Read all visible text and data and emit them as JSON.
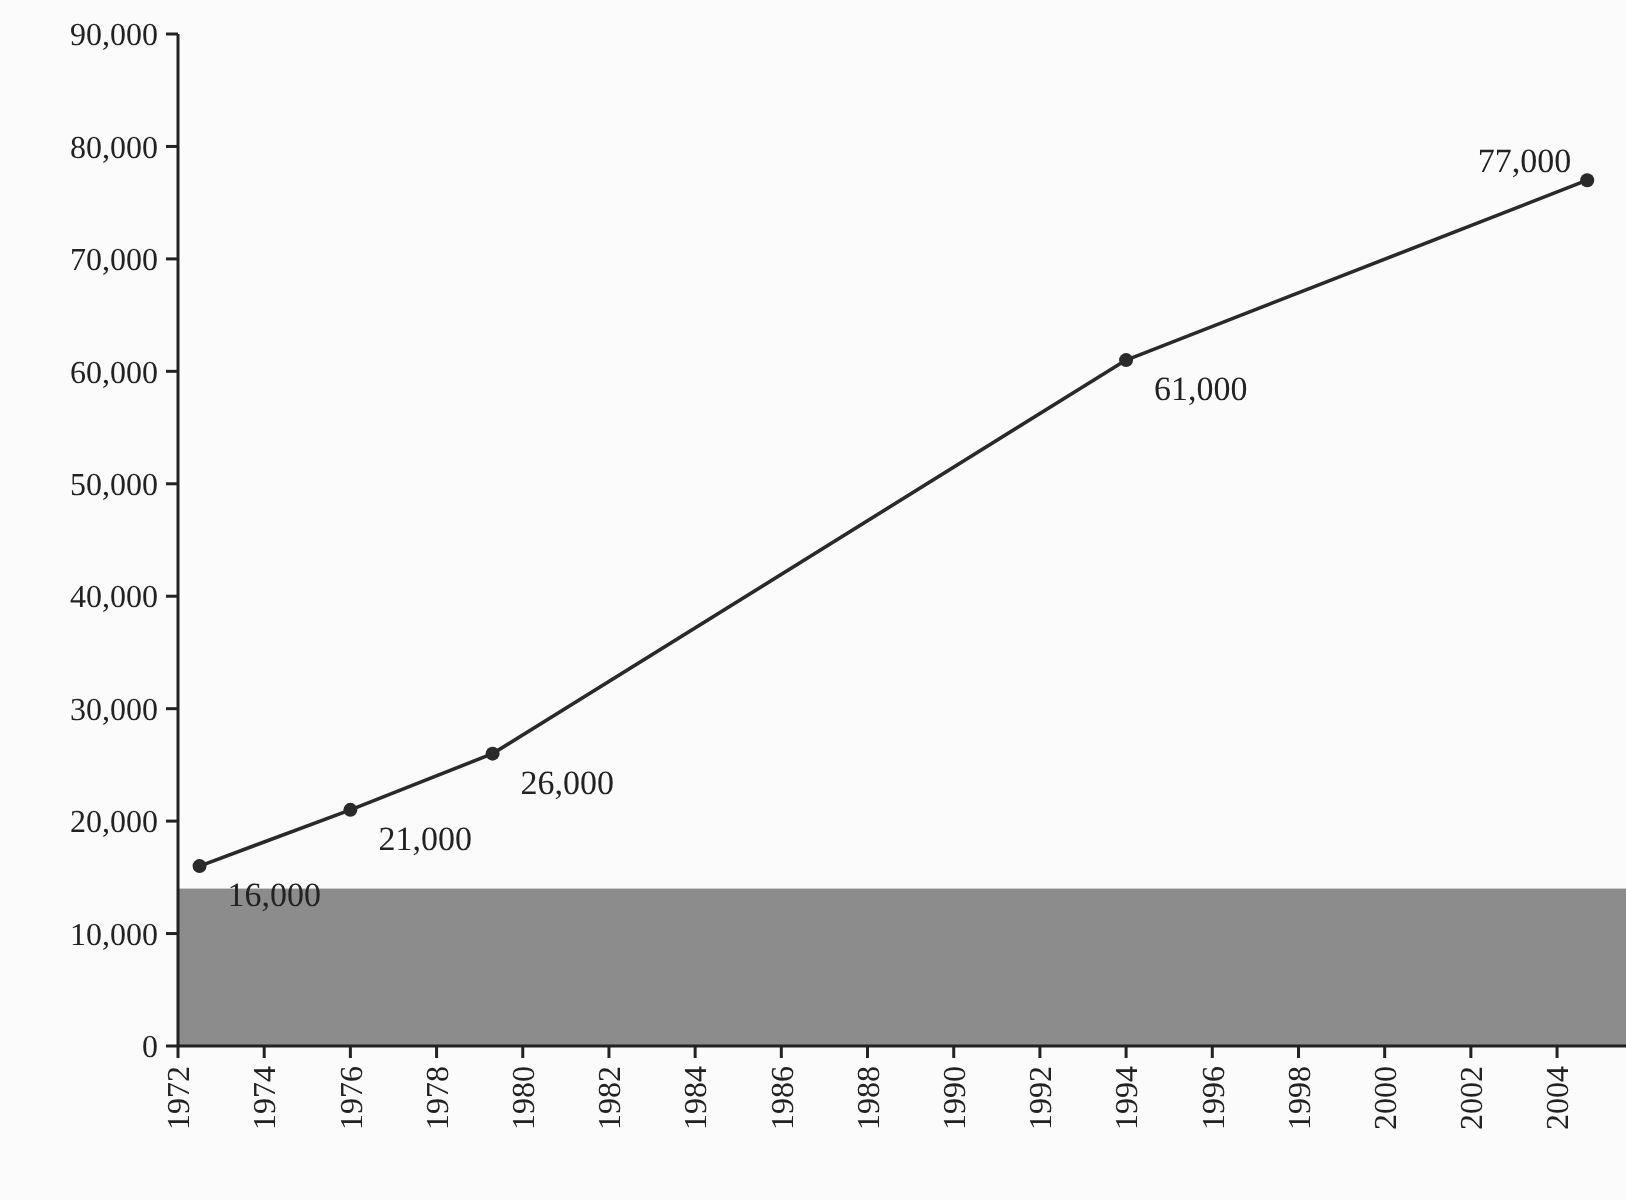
{
  "chart_data": {
    "type": "line",
    "x": [
      1972.5,
      1976,
      1979.3,
      1994,
      2004.7
    ],
    "series": [
      {
        "color": "#2a2a2a",
        "values": [
          16000,
          21000,
          26000,
          61000,
          77000
        ],
        "value_labels": [
          "16,000",
          "21,000",
          "26,000",
          "61,000",
          "77,000"
        ]
      }
    ],
    "xlim": [
      1972,
      2005.6
    ],
    "xticks": [
      1972,
      1974,
      1976,
      1978,
      1980,
      1982,
      1984,
      1986,
      1988,
      1990,
      1992,
      1994,
      1996,
      1998,
      2000,
      2002,
      2004
    ],
    "ylim": [
      0,
      90000
    ],
    "yticks": [
      {
        "value": 0,
        "label": "0"
      },
      {
        "value": 10000,
        "label": "10,000"
      },
      {
        "value": 20000,
        "label": "20,000"
      },
      {
        "value": 30000,
        "label": "30,000"
      },
      {
        "value": 40000,
        "label": "40,000"
      },
      {
        "value": 50000,
        "label": "50,000"
      },
      {
        "value": 60000,
        "label": "60,000"
      },
      {
        "value": 70000,
        "label": "70,000"
      },
      {
        "value": 80000,
        "label": "80,000"
      },
      {
        "value": 90000,
        "label": "90,000"
      }
    ],
    "bands": [
      {
        "axis": "y",
        "from": 0,
        "to": 14000,
        "color": "#8c8c8c"
      }
    ],
    "marker": "circle",
    "line_style": "solid"
  }
}
